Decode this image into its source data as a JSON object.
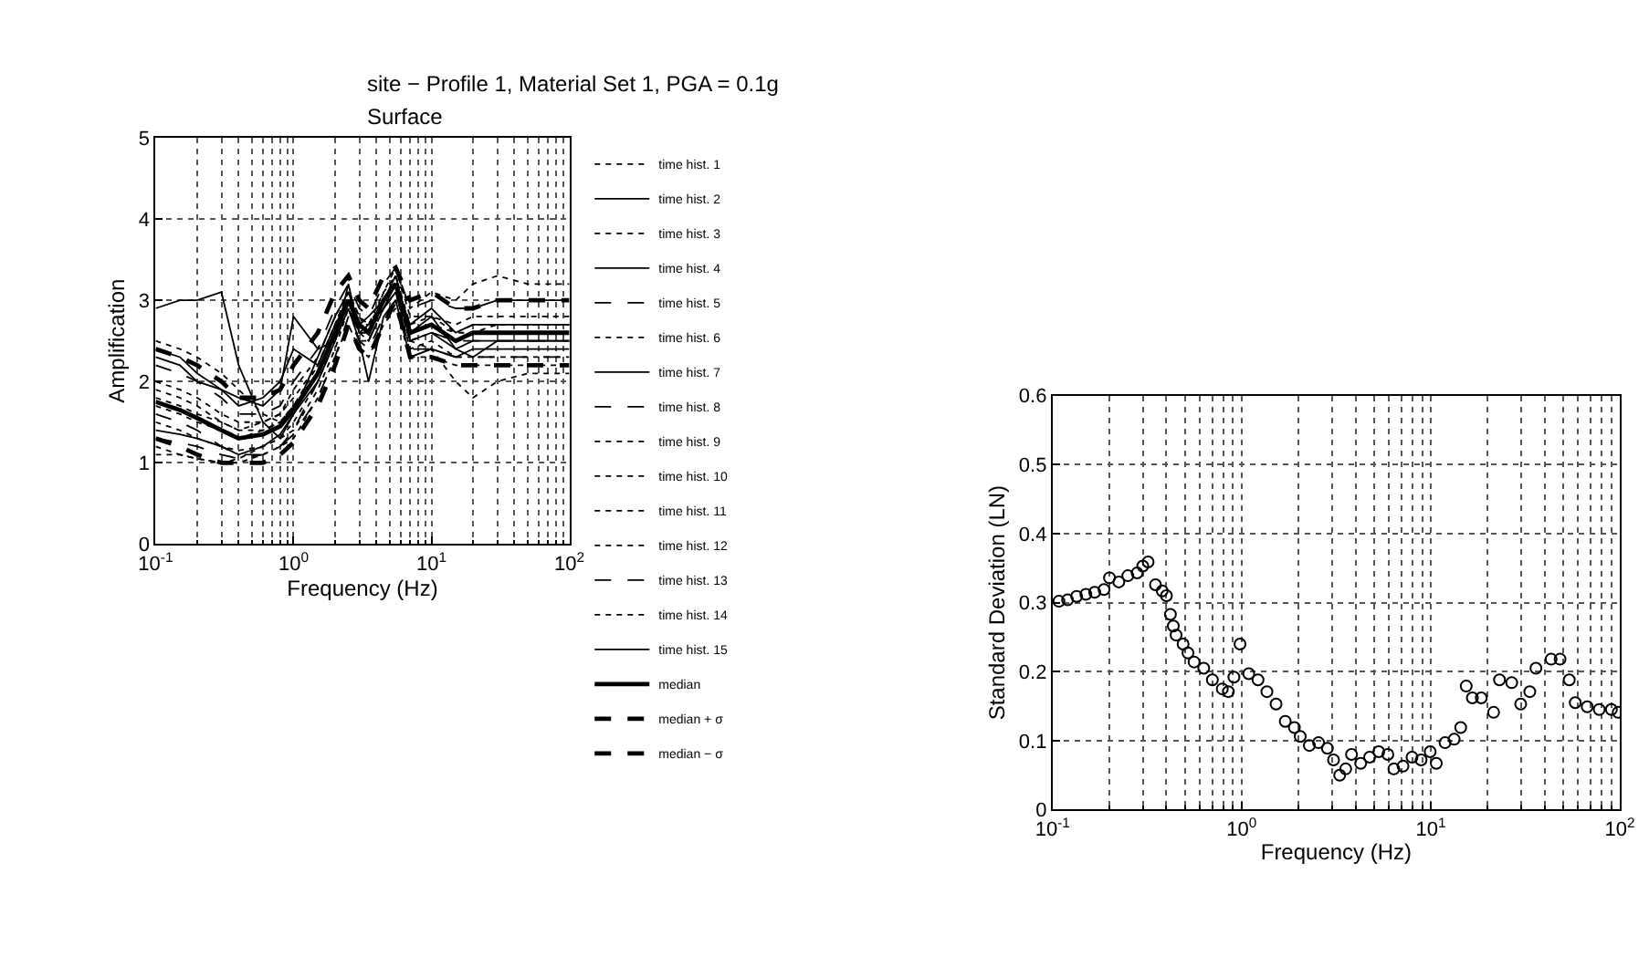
{
  "chart_data": [
    {
      "type": "line",
      "title": "site − Profile 1, Material Set 1, PGA = 0.1g",
      "subtitle": "Surface",
      "xlabel": "Frequency (Hz)",
      "ylabel": "Amplification",
      "log": "x",
      "grid": true,
      "legend": "right",
      "xlim": [
        0.1,
        100
      ],
      "xticks": [
        {
          "value": 0.1,
          "label": "10$^{-1}$"
        },
        {
          "value": 1,
          "label": "10$^{0}$"
        },
        {
          "value": 10,
          "label": "10$^{1}$"
        },
        {
          "value": 100,
          "label": "10$^{2}$"
        }
      ],
      "ylim": [
        0,
        5
      ],
      "yticks": [
        0,
        1,
        2,
        3,
        4,
        5
      ],
      "x": [
        0.1,
        0.15,
        0.2,
        0.3,
        0.4,
        0.6,
        0.8,
        1,
        1.5,
        2,
        2.5,
        3,
        3.5,
        4.5,
        5.5,
        7,
        10,
        15,
        20,
        30,
        50,
        100
      ],
      "series": [
        {
          "name": "time hist. 1",
          "color": "#000000",
          "line_style": "dotted",
          "values": [
            2.5,
            2.4,
            2.3,
            2.1,
            1.9,
            1.6,
            1.5,
            1.7,
            2.2,
            2.7,
            3.1,
            2.8,
            2.7,
            3.1,
            3.3,
            2.9,
            3.1,
            3.0,
            3.2,
            3.3,
            3.2,
            3.2
          ]
        },
        {
          "name": "time hist. 2",
          "color": "#000000",
          "line_style": "solid",
          "values": [
            2.9,
            3.0,
            3.0,
            3.1,
            2.2,
            1.5,
            1.3,
            1.6,
            2.3,
            2.8,
            3.1,
            2.7,
            2.8,
            3.0,
            3.3,
            2.6,
            2.8,
            2.4,
            2.3,
            2.5,
            2.5,
            2.5
          ]
        },
        {
          "name": "time hist. 3",
          "color": "#000000",
          "line_style": "dotted",
          "values": [
            1.2,
            1.1,
            1.05,
            1.0,
            1.05,
            1.2,
            1.3,
            1.4,
            1.9,
            2.4,
            2.9,
            2.5,
            2.5,
            2.9,
            3.1,
            2.4,
            2.5,
            2.3,
            2.3,
            2.3,
            2.3,
            2.3
          ]
        },
        {
          "name": "time hist. 4",
          "color": "#000000",
          "line_style": "solid",
          "values": [
            2.3,
            2.2,
            2.0,
            1.9,
            1.8,
            1.7,
            1.9,
            2.8,
            2.4,
            2.5,
            3.2,
            2.6,
            2.6,
            3.0,
            3.2,
            2.5,
            2.6,
            2.4,
            2.5,
            2.5,
            2.5,
            2.5
          ]
        },
        {
          "name": "time hist. 5",
          "color": "#000000",
          "line_style": "dashed",
          "values": [
            1.6,
            1.5,
            1.4,
            1.2,
            1.1,
            1.1,
            1.2,
            1.4,
            2.0,
            2.5,
            2.9,
            2.6,
            2.5,
            2.9,
            3.1,
            2.5,
            2.6,
            2.5,
            2.5,
            2.5,
            2.5,
            2.5
          ]
        },
        {
          "name": "time hist. 6",
          "color": "#000000",
          "line_style": "dotted",
          "values": [
            1.9,
            1.8,
            1.7,
            1.5,
            1.4,
            1.5,
            1.6,
            1.8,
            2.2,
            2.7,
            3.1,
            2.8,
            2.6,
            3.1,
            3.4,
            2.8,
            2.8,
            2.7,
            2.8,
            2.8,
            2.8,
            2.8
          ]
        },
        {
          "name": "time hist. 7",
          "color": "#000000",
          "line_style": "solid",
          "values": [
            2.4,
            2.3,
            2.1,
            1.9,
            1.7,
            1.8,
            2.0,
            2.4,
            2.2,
            2.7,
            3.0,
            2.6,
            2.7,
            2.9,
            3.2,
            2.7,
            2.9,
            2.6,
            2.7,
            2.7,
            2.7,
            2.7
          ]
        },
        {
          "name": "time hist. 8",
          "color": "#000000",
          "line_style": "dashed",
          "values": [
            1.3,
            1.25,
            1.2,
            1.1,
            1.05,
            1.1,
            1.2,
            1.35,
            1.8,
            2.3,
            2.8,
            2.5,
            2.4,
            2.8,
            3.0,
            2.4,
            2.4,
            2.3,
            2.3,
            2.3,
            2.3,
            2.3
          ]
        },
        {
          "name": "time hist. 9",
          "color": "#000000",
          "line_style": "dotted",
          "values": [
            1.7,
            1.6,
            1.5,
            1.4,
            1.3,
            1.4,
            1.5,
            1.7,
            2.1,
            2.6,
            3.0,
            2.7,
            2.6,
            3.0,
            3.2,
            2.6,
            2.7,
            2.6,
            2.7,
            2.7,
            2.7,
            2.7
          ]
        },
        {
          "name": "time hist. 10",
          "color": "#000000",
          "line_style": "dotted",
          "values": [
            1.5,
            1.4,
            1.3,
            1.2,
            1.15,
            1.2,
            1.3,
            1.5,
            2.0,
            2.5,
            2.9,
            2.6,
            2.5,
            2.9,
            3.1,
            2.5,
            2.6,
            2.5,
            2.6,
            2.6,
            2.6,
            2.6
          ]
        },
        {
          "name": "time hist. 11",
          "color": "#000000",
          "line_style": "dotted",
          "values": [
            2.0,
            1.9,
            1.8,
            1.6,
            1.5,
            1.5,
            1.6,
            1.9,
            2.3,
            2.8,
            3.1,
            2.7,
            2.7,
            3.0,
            3.3,
            2.7,
            2.8,
            2.6,
            2.6,
            2.7,
            2.7,
            2.7
          ]
        },
        {
          "name": "time hist. 12",
          "color": "#000000",
          "line_style": "dotted",
          "values": [
            1.1,
            1.1,
            1.05,
            1.0,
            1.0,
            1.1,
            1.2,
            1.3,
            1.8,
            2.3,
            2.7,
            2.4,
            2.3,
            2.7,
            2.9,
            2.3,
            2.3,
            2.2,
            2.2,
            2.2,
            2.2,
            2.2
          ]
        },
        {
          "name": "time hist. 13",
          "color": "#000000",
          "line_style": "dashed",
          "values": [
            2.2,
            2.1,
            2.0,
            1.8,
            1.6,
            1.6,
            1.7,
            2.0,
            2.4,
            2.9,
            3.2,
            2.9,
            2.8,
            3.2,
            3.4,
            2.9,
            3.0,
            2.9,
            2.9,
            3.0,
            3.0,
            3.0
          ]
        },
        {
          "name": "time hist. 14",
          "color": "#000000",
          "line_style": "dotted",
          "values": [
            1.8,
            1.7,
            1.6,
            1.5,
            1.4,
            1.4,
            1.5,
            1.7,
            2.1,
            2.6,
            3.0,
            2.6,
            2.6,
            2.9,
            3.1,
            2.5,
            2.4,
            2.0,
            1.8,
            2.0,
            2.1,
            2.1
          ]
        },
        {
          "name": "time hist. 15",
          "color": "#000000",
          "line_style": "solid",
          "values": [
            1.4,
            1.35,
            1.3,
            1.2,
            1.1,
            1.2,
            1.35,
            1.6,
            2.0,
            2.5,
            2.9,
            2.5,
            2.0,
            2.8,
            3.0,
            2.3,
            2.4,
            2.3,
            2.4,
            2.4,
            2.4,
            2.4
          ]
        },
        {
          "name": "median",
          "color": "#000000",
          "line_style": "solid",
          "values": [
            1.75,
            1.65,
            1.55,
            1.4,
            1.3,
            1.35,
            1.45,
            1.65,
            2.1,
            2.6,
            3.0,
            2.7,
            2.6,
            3.0,
            3.2,
            2.6,
            2.7,
            2.5,
            2.6,
            2.6,
            2.6,
            2.6
          ]
        },
        {
          "name": "median + σ",
          "color": "#000000",
          "line_style": "dashed",
          "values": [
            2.4,
            2.3,
            2.2,
            2.0,
            1.8,
            1.8,
            1.9,
            2.2,
            2.6,
            3.1,
            3.3,
            3.0,
            2.9,
            3.3,
            3.4,
            3.0,
            3.1,
            2.9,
            2.9,
            3.0,
            3.0,
            3.0
          ]
        },
        {
          "name": "median − σ",
          "color": "#000000",
          "line_style": "dashed",
          "values": [
            1.3,
            1.2,
            1.1,
            1.0,
            1.0,
            1.0,
            1.1,
            1.25,
            1.7,
            2.2,
            2.7,
            2.4,
            2.3,
            2.7,
            3.0,
            2.3,
            2.3,
            2.2,
            2.2,
            2.2,
            2.2,
            2.2
          ]
        }
      ]
    },
    {
      "type": "scatter",
      "xlabel": "Frequency (Hz)",
      "ylabel": "Standard Deviation (LN)",
      "log": "x",
      "grid": true,
      "marker": "circle",
      "xlim": [
        0.1,
        100
      ],
      "xticks": [
        {
          "value": 0.1,
          "label": "10$^{-1}$"
        },
        {
          "value": 1,
          "label": "10$^{0}$"
        },
        {
          "value": 10,
          "label": "10$^{1}$"
        },
        {
          "value": 100,
          "label": "10$^{2}$"
        }
      ],
      "ylim": [
        0,
        0.6
      ],
      "yticks": [
        0,
        0.1,
        0.2,
        0.3,
        0.4,
        0.5,
        0.6
      ],
      "x": [
        0.108,
        0.12,
        0.134,
        0.15,
        0.167,
        0.187,
        0.2,
        0.224,
        0.25,
        0.28,
        0.3,
        0.32,
        0.35,
        0.38,
        0.4,
        0.42,
        0.435,
        0.45,
        0.49,
        0.52,
        0.56,
        0.63,
        0.7,
        0.79,
        0.85,
        0.91,
        0.98,
        1.09,
        1.22,
        1.36,
        1.52,
        1.7,
        1.9,
        2.04,
        2.28,
        2.55,
        2.84,
        3.06,
        3.3,
        3.55,
        3.81,
        4.26,
        4.75,
        5.31,
        5.93,
        6.38,
        7.13,
        7.96,
        8.89,
        9.93,
        10.7,
        11.9,
        13.3,
        14.4,
        15.4,
        16.6,
        18.5,
        21.5,
        23.1,
        26.8,
        29.9,
        33.4,
        36.0,
        43.3,
        48.3,
        54.0,
        58.1,
        67.2,
        77.8,
        90.2,
        98
      ],
      "series": [
        {
          "color": "#000000",
          "values": [
            0.302,
            0.304,
            0.309,
            0.312,
            0.315,
            0.319,
            0.336,
            0.33,
            0.339,
            0.343,
            0.353,
            0.359,
            0.326,
            0.317,
            0.31,
            0.283,
            0.266,
            0.253,
            0.24,
            0.227,
            0.214,
            0.205,
            0.188,
            0.175,
            0.171,
            0.192,
            0.24,
            0.197,
            0.188,
            0.171,
            0.153,
            0.128,
            0.119,
            0.106,
            0.093,
            0.097,
            0.089,
            0.072,
            0.05,
            0.059,
            0.08,
            0.067,
            0.076,
            0.084,
            0.08,
            0.059,
            0.063,
            0.076,
            0.072,
            0.084,
            0.067,
            0.097,
            0.102,
            0.119,
            0.179,
            0.162,
            0.162,
            0.141,
            0.188,
            0.184,
            0.153,
            0.171,
            0.205,
            0.218,
            0.218,
            0.188,
            0.155,
            0.149,
            0.145,
            0.145,
            0.141
          ]
        }
      ]
    }
  ]
}
